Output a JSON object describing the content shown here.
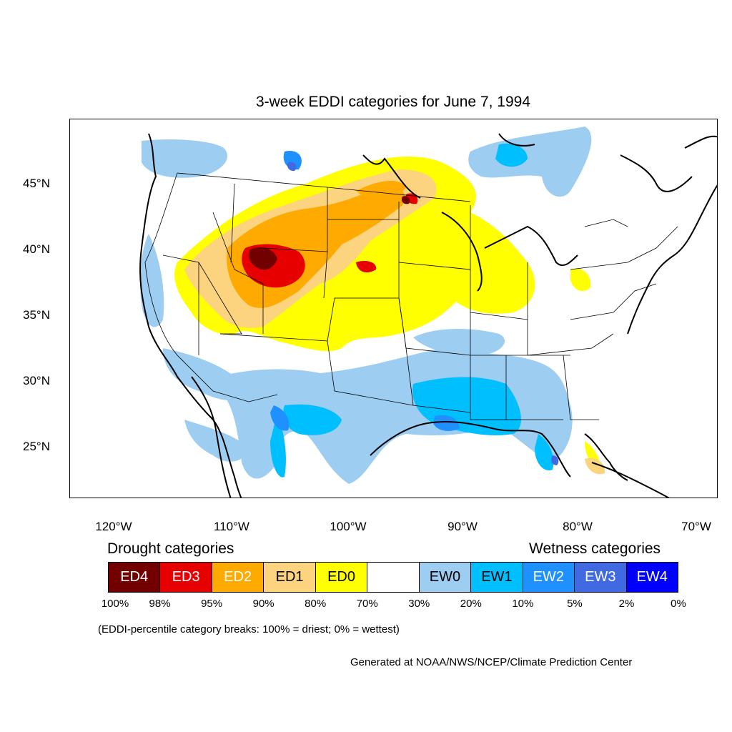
{
  "title": "3-week EDDI categories for June 7, 1994",
  "lat_labels": [
    "45°N",
    "40°N",
    "35°N",
    "30°N",
    "25°N"
  ],
  "lon_labels": [
    "120°W",
    "110°W",
    "100°W",
    "90°W",
    "80°W",
    "70°W"
  ],
  "legend": {
    "drought_title": "Drought categories",
    "wetness_title": "Wetness categories",
    "categories": [
      {
        "label": "ED4",
        "color": "#730000",
        "text_color": "#ffffff"
      },
      {
        "label": "ED3",
        "color": "#e60000",
        "text_color": "#ffffff"
      },
      {
        "label": "ED2",
        "color": "#ffaa00",
        "text_color": "#ffffff"
      },
      {
        "label": "ED1",
        "color": "#fcd37f",
        "text_color": "#000000"
      },
      {
        "label": "ED0",
        "color": "#ffff00",
        "text_color": "#000000"
      },
      {
        "label": "",
        "color": "#ffffff",
        "text_color": "#000000"
      },
      {
        "label": "EW0",
        "color": "#9dcdf0",
        "text_color": "#000000"
      },
      {
        "label": "EW1",
        "color": "#00bfff",
        "text_color": "#000000"
      },
      {
        "label": "EW2",
        "color": "#1e90ff",
        "text_color": "#ffffff"
      },
      {
        "label": "EW3",
        "color": "#4169e1",
        "text_color": "#ffffff"
      },
      {
        "label": "EW4",
        "color": "#0000ff",
        "text_color": "#ffffff"
      }
    ],
    "breaks": [
      "100%",
      "98%",
      "95%",
      "90%",
      "80%",
      "70%",
      "30%",
      "20%",
      "10%",
      "5%",
      "2%",
      "0%"
    ]
  },
  "note": "(EDDI-percentile category breaks: 100% = driest; 0% = wettest)",
  "credit": "Generated at NOAA/NWS/NCEP/Climate Prediction Center"
}
